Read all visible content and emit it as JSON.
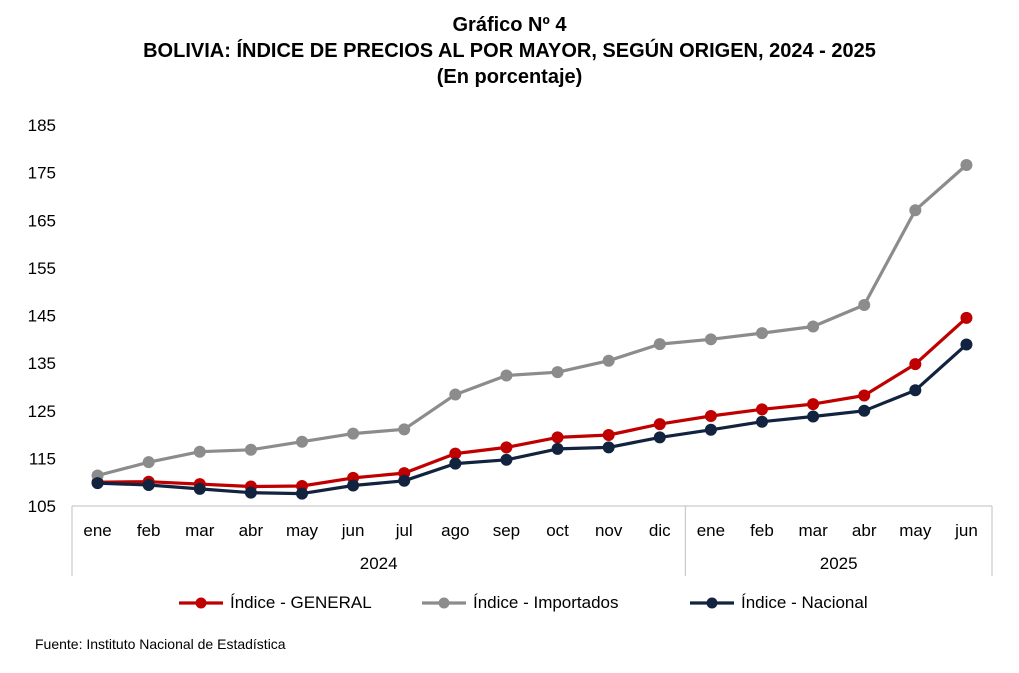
{
  "header": {
    "title": "Gráfico Nº 4",
    "subtitle": "BOLIVIA: ÍNDICE DE PRECIOS AL POR MAYOR, SEGÚN ORIGEN, 2024 - 2025",
    "unit": "(En porcentaje)"
  },
  "chart_data": {
    "type": "line",
    "categories": [
      "ene",
      "feb",
      "mar",
      "abr",
      "may",
      "jun",
      "jul",
      "ago",
      "sep",
      "oct",
      "nov",
      "dic",
      "ene",
      "feb",
      "mar",
      "abr",
      "may",
      "jun"
    ],
    "groups": [
      {
        "label": "2024",
        "start": 0,
        "end": 11
      },
      {
        "label": "2025",
        "start": 12,
        "end": 17
      }
    ],
    "ylim": [
      105,
      185
    ],
    "yticks": [
      105,
      115,
      125,
      135,
      145,
      155,
      165,
      175,
      185
    ],
    "grid": false,
    "legend_position": "bottom",
    "series": [
      {
        "name": "Índice - GENERAL",
        "color": "#c00000",
        "values": [
          110.0,
          110.1,
          109.6,
          109.1,
          109.2,
          110.9,
          111.9,
          116.0,
          117.3,
          119.4,
          119.9,
          122.2,
          123.9,
          125.3,
          126.4,
          128.2,
          134.8,
          144.5
        ]
      },
      {
        "name": "Índice - Importados",
        "color": "#8c8c8c",
        "values": [
          111.4,
          114.2,
          116.4,
          116.8,
          118.5,
          120.2,
          121.1,
          128.4,
          132.4,
          133.1,
          135.5,
          139.0,
          140.0,
          141.3,
          142.7,
          147.2,
          167.1,
          176.6
        ]
      },
      {
        "name": "Índice - Nacional",
        "color": "#12233f",
        "values": [
          109.8,
          109.4,
          108.6,
          107.8,
          107.6,
          109.3,
          110.3,
          113.9,
          114.7,
          117.0,
          117.3,
          119.4,
          121.0,
          122.7,
          123.8,
          125.0,
          129.3,
          138.9
        ]
      }
    ]
  },
  "footer": {
    "source": "Fuente: Instituto Nacional de Estadística"
  }
}
